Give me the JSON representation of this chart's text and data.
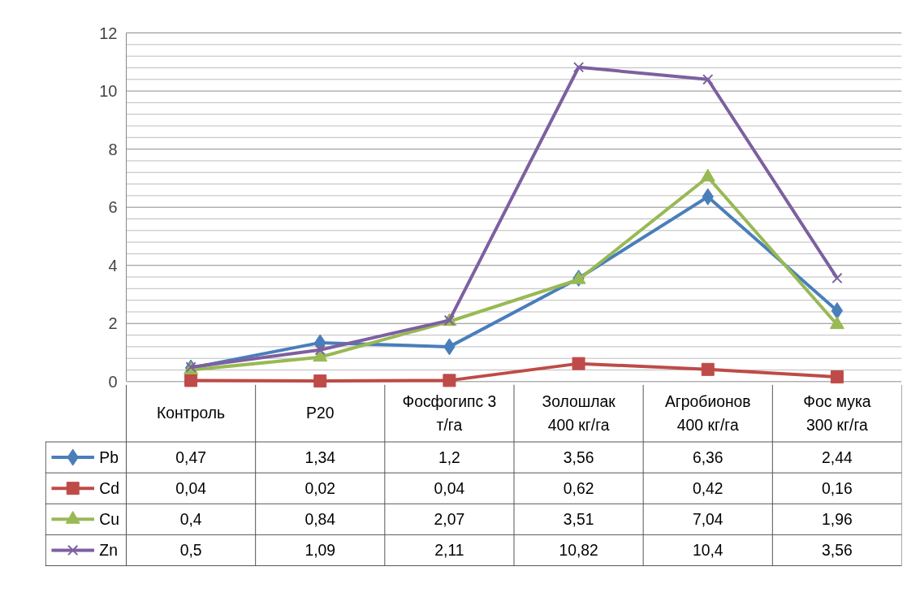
{
  "chart_data": {
    "type": "line",
    "categories": [
      "Контроль",
      "P20",
      "Фосфогипс 3 т/га",
      "Золошлак 400 кг/га",
      "Агробионов 400 кг/га",
      "Фос мука 300 кг/га"
    ],
    "series": [
      {
        "name": "Pb",
        "color": "#4a7ebb",
        "marker": "diamond",
        "values": [
          0.47,
          1.34,
          1.2,
          3.56,
          6.36,
          2.44
        ],
        "value_labels": [
          "0,47",
          "1,34",
          "1,2",
          "3,56",
          "6,36",
          "2,44"
        ]
      },
      {
        "name": "Cd",
        "color": "#be4b48",
        "marker": "square",
        "values": [
          0.04,
          0.02,
          0.04,
          0.62,
          0.42,
          0.16
        ],
        "value_labels": [
          "0,04",
          "0,02",
          "0,04",
          "0,62",
          "0,42",
          "0,16"
        ]
      },
      {
        "name": "Cu",
        "color": "#98b954",
        "marker": "triangle",
        "values": [
          0.4,
          0.84,
          2.07,
          3.51,
          7.04,
          1.96
        ],
        "value_labels": [
          "0,4",
          "0,84",
          "2,07",
          "3,51",
          "7,04",
          "1,96"
        ]
      },
      {
        "name": "Zn",
        "color": "#7d60a0",
        "marker": "cross",
        "values": [
          0.5,
          1.09,
          2.11,
          10.82,
          10.4,
          3.56
        ],
        "value_labels": [
          "0,5",
          "1,09",
          "2,11",
          "10,82",
          "10,4",
          "3,56"
        ]
      }
    ],
    "ylim": [
      0,
      12
    ],
    "yticks": [
      0,
      2,
      4,
      6,
      8,
      10,
      12
    ],
    "grid": "y",
    "legend": "bottom left",
    "line_style": "solid"
  }
}
